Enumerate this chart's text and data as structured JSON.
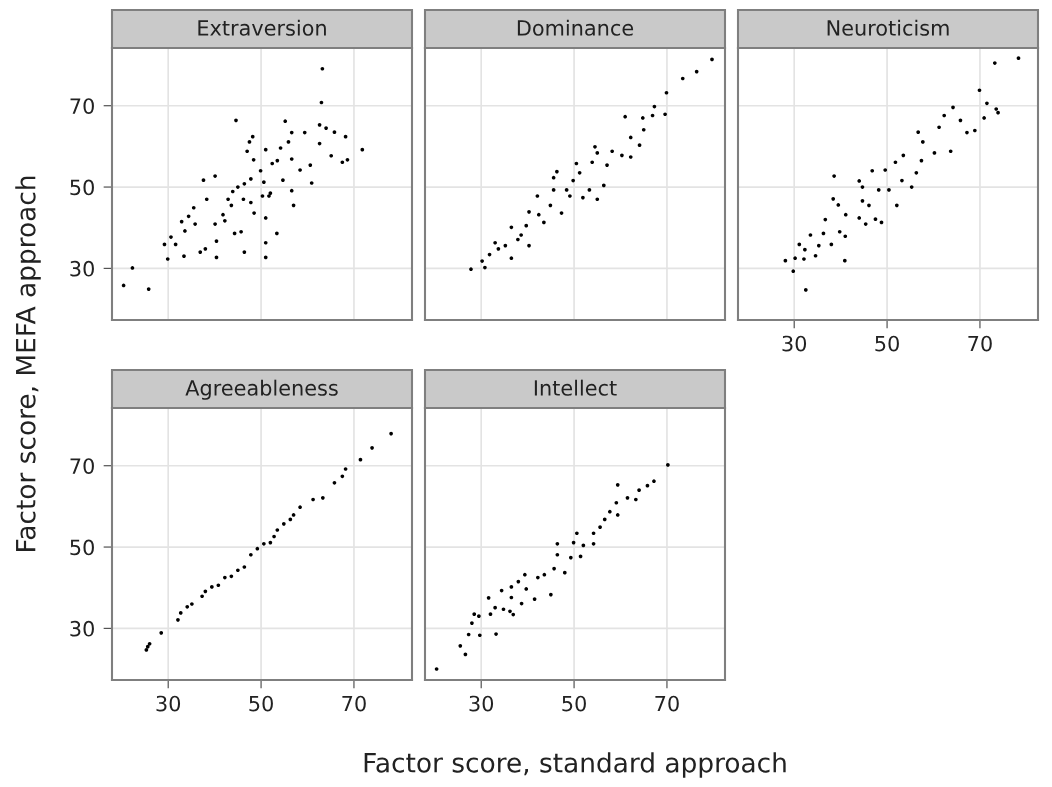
{
  "chart_data": [
    {
      "type": "scatter",
      "title": "Extraversion",
      "ylabel": "Factor score, MEFA approach",
      "xlim": [
        17.9,
        82.5
      ],
      "ylim": [
        17.3,
        84.2
      ],
      "xticks": [
        30,
        50,
        70
      ],
      "yticks": [
        30,
        50,
        70
      ],
      "grid": true,
      "marker": "circle",
      "tick_labels": "y",
      "series": [
        {
          "color": "#000000",
          "x": [
            63.2,
            63.0,
            44.6,
            71.8,
            68.2,
            65.8,
            62.6,
            64.0,
            55.2,
            56.6,
            59.4,
            62.6,
            65.1,
            67.5,
            68.6,
            58.4,
            60.9,
            60.6,
            56.6,
            55.9,
            54.2,
            51.0,
            48.2,
            47.5,
            47.0,
            48.4,
            52.4,
            53.5,
            49.9,
            56.6,
            57.0,
            54.7,
            52.0,
            50.3,
            50.6,
            47.8,
            46.4,
            45.0,
            43.9,
            42.9,
            47.8,
            46.2,
            48.5,
            51.0,
            53.4,
            51.0,
            51.0,
            46.4,
            45.7,
            44.3,
            41.8,
            40.1,
            40.4,
            40.4,
            38.0,
            36.9,
            37.6,
            40.1,
            38.3,
            35.5,
            34.4,
            32.9,
            35.8,
            33.6,
            30.6,
            29.2,
            31.6,
            29.9,
            33.4,
            22.3,
            20.4,
            25.8,
            43.6,
            42.2,
            51.7
          ],
          "values": [
            79.1,
            70.8,
            66.4,
            59.2,
            62.4,
            63.5,
            65.3,
            64.5,
            66.2,
            63.4,
            63.4,
            60.7,
            57.7,
            56.1,
            56.7,
            54.2,
            51.0,
            55.4,
            56.9,
            61.1,
            59.6,
            59.2,
            62.4,
            61.1,
            58.8,
            56.7,
            55.8,
            56.5,
            54.0,
            49.1,
            45.5,
            51.7,
            48.5,
            47.8,
            51.2,
            52.0,
            50.8,
            50.0,
            48.9,
            47.0,
            46.2,
            47.0,
            43.6,
            42.4,
            38.6,
            36.3,
            32.7,
            34.0,
            39.0,
            38.6,
            43.2,
            40.9,
            36.7,
            32.7,
            34.8,
            34.0,
            51.7,
            52.7,
            47.0,
            44.9,
            42.8,
            41.5,
            40.9,
            39.2,
            37.7,
            35.9,
            35.9,
            32.3,
            33.0,
            30.1,
            25.8,
            24.9,
            45.5,
            41.7,
            47.8
          ]
        }
      ]
    },
    {
      "type": "scatter",
      "title": "Dominance",
      "xlim": [
        17.9,
        82.5
      ],
      "ylim": [
        17.3,
        84.2
      ],
      "xticks": [
        30,
        50,
        70
      ],
      "yticks": [
        30,
        50,
        70
      ],
      "grid": true,
      "marker": "circle",
      "tick_labels": false,
      "series": [
        {
          "color": "#000000",
          "x": [
            79.7,
            76.4,
            73.4,
            69.9,
            69.6,
            67.3,
            66.9,
            64.8,
            65.0,
            61.0,
            64.1,
            62.2,
            62.2,
            60.3,
            58.2,
            54.5,
            55.0,
            57.1,
            53.9,
            56.4,
            55.0,
            51.9,
            53.3,
            50.5,
            49.8,
            48.4,
            46.3,
            45.6,
            45.6,
            47.3,
            44.9,
            43.5,
            42.1,
            42.4,
            40.3,
            39.7,
            40.3,
            37.9,
            36.5,
            38.6,
            35.2,
            33.7,
            33.0,
            36.5,
            31.8,
            30.2,
            30.8,
            27.8,
            49.1,
            51.2
          ],
          "values": [
            81.4,
            78.4,
            76.7,
            73.2,
            67.9,
            69.8,
            67.6,
            67.0,
            64.1,
            67.3,
            60.3,
            62.2,
            57.4,
            57.8,
            58.8,
            59.9,
            58.4,
            55.4,
            56.1,
            50.4,
            47.0,
            47.4,
            49.3,
            55.8,
            51.6,
            49.3,
            53.8,
            52.3,
            49.3,
            43.6,
            45.5,
            41.3,
            47.8,
            43.2,
            43.9,
            40.5,
            35.6,
            37.1,
            40.1,
            38.2,
            35.6,
            34.8,
            36.3,
            32.5,
            33.4,
            31.8,
            30.2,
            29.8,
            47.8,
            53.5
          ]
        }
      ]
    },
    {
      "type": "scatter",
      "title": "Neuroticism",
      "xlim": [
        17.9,
        82.5
      ],
      "ylim": [
        17.3,
        84.2
      ],
      "xticks": [
        30,
        50,
        70
      ],
      "yticks": [
        30,
        50,
        70
      ],
      "grid": true,
      "marker": "circle",
      "tick_labels": "x",
      "series": [
        {
          "color": "#000000",
          "x": [
            78.3,
            73.2,
            69.9,
            71.5,
            73.5,
            73.9,
            70.9,
            68.9,
            67.2,
            65.8,
            64.2,
            62.3,
            61.2,
            63.7,
            60.2,
            56.7,
            57.7,
            57.4,
            53.5,
            51.8,
            49.6,
            46.8,
            56.3,
            55.3,
            52.1,
            48.8,
            47.5,
            44.7,
            44.0,
            50.4,
            48.2,
            44.7,
            46.1,
            45.4,
            44.0,
            38.6,
            38.4,
            39.5,
            41.1,
            39.8,
            41.0,
            38.0,
            36.7,
            36.3,
            35.3,
            33.5,
            32.3,
            31.1,
            32.1,
            30.2,
            28.1,
            29.8,
            32.5,
            40.9,
            34.6,
            53.2
          ],
          "values": [
            81.7,
            80.5,
            73.8,
            70.6,
            69.2,
            68.3,
            67.0,
            63.9,
            63.4,
            66.4,
            69.6,
            67.6,
            64.7,
            58.8,
            58.4,
            63.5,
            61.1,
            56.5,
            57.8,
            56.1,
            54.2,
            54.0,
            53.5,
            50.0,
            45.5,
            41.3,
            42.1,
            50.0,
            51.5,
            49.3,
            49.3,
            46.6,
            45.5,
            40.9,
            42.4,
            52.7,
            47.1,
            45.6,
            43.2,
            39.0,
            37.9,
            35.9,
            42.0,
            38.6,
            35.6,
            38.2,
            34.6,
            35.9,
            32.3,
            32.5,
            31.9,
            29.3,
            24.7,
            31.9,
            33.1,
            51.6
          ]
        }
      ]
    },
    {
      "type": "scatter",
      "title": "Agreeableness",
      "xlim": [
        17.9,
        82.5
      ],
      "ylim": [
        17.3,
        84.2
      ],
      "xticks": [
        30,
        50,
        70
      ],
      "yticks": [
        30,
        50,
        70
      ],
      "grid": true,
      "marker": "circle",
      "series": [
        {
          "color": "#000000",
          "x": [
            78.0,
            73.9,
            71.4,
            68.2,
            67.5,
            65.8,
            63.3,
            61.2,
            58.4,
            56.3,
            54.9,
            53.5,
            52.0,
            50.6,
            49.2,
            47.8,
            46.4,
            45.0,
            43.6,
            42.2,
            40.8,
            39.4,
            38.0,
            37.3,
            35.1,
            34.1,
            32.7,
            32.1,
            28.5,
            26.0,
            25.3,
            25.6,
            57.0,
            52.8
          ],
          "values": [
            77.9,
            74.4,
            71.5,
            69.2,
            67.4,
            65.8,
            62.1,
            61.7,
            59.8,
            56.8,
            55.7,
            54.2,
            51.1,
            50.8,
            49.6,
            48.1,
            45.1,
            44.3,
            42.8,
            42.5,
            40.6,
            40.2,
            39.1,
            37.9,
            36.0,
            35.3,
            33.8,
            32.1,
            28.9,
            26.2,
            24.7,
            25.5,
            57.9,
            52.6
          ]
        }
      ]
    },
    {
      "type": "scatter",
      "title": "Intellect",
      "xlabel": "Factor score, standard approach",
      "xlim": [
        17.9,
        82.5
      ],
      "ylim": [
        17.3,
        84.2
      ],
      "xticks": [
        30,
        50,
        70
      ],
      "yticks": [
        30,
        50,
        70
      ],
      "grid": true,
      "marker": "circle",
      "tick_labels": "x",
      "series": [
        {
          "color": "#000000",
          "x": [
            70.2,
            67.2,
            65.8,
            64.0,
            63.3,
            61.5,
            59.4,
            59.1,
            59.4,
            57.7,
            56.6,
            55.6,
            54.2,
            50.6,
            54.2,
            52.0,
            49.9,
            51.4,
            49.3,
            46.4,
            46.4,
            45.7,
            48.0,
            43.6,
            42.2,
            39.4,
            38.0,
            36.5,
            39.7,
            45.0,
            41.5,
            38.7,
            36.5,
            34.8,
            36.2,
            36.9,
            34.4,
            31.6,
            32.0,
            28.5,
            29.5,
            28.0,
            27.3,
            29.7,
            33.2,
            25.5,
            26.6,
            20.4,
            33.0
          ],
          "values": [
            70.2,
            66.2,
            65.1,
            64.0,
            61.7,
            62.1,
            65.3,
            60.9,
            57.9,
            58.7,
            56.8,
            54.9,
            53.4,
            53.4,
            50.8,
            50.4,
            51.1,
            47.7,
            47.4,
            50.8,
            48.1,
            44.7,
            43.7,
            43.2,
            42.5,
            43.2,
            41.5,
            40.2,
            39.7,
            38.3,
            37.2,
            36.1,
            37.6,
            34.7,
            34.2,
            33.4,
            39.3,
            37.5,
            33.5,
            33.5,
            33.0,
            31.3,
            28.5,
            28.3,
            28.6,
            25.7,
            23.6,
            20.0,
            35.1
          ]
        }
      ]
    }
  ]
}
